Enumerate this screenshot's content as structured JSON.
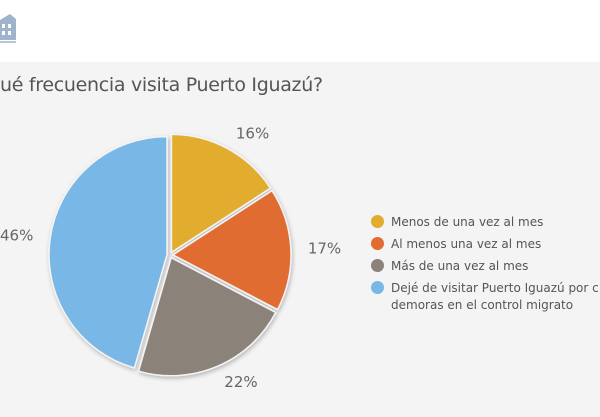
{
  "header": {
    "logo_icon": "building-logo-icon"
  },
  "chart_data": {
    "type": "pie",
    "title": "ué frecuencia visita Puerto Iguazú?",
    "categories": [
      "Menos de una vez al mes",
      "Al menos una vez al mes",
      "Más de una vez al mes",
      "Dejé de visitar Puerto Iguazú por c las demoras en el control migrato"
    ],
    "values": [
      16,
      17,
      22,
      46
    ],
    "labels": [
      "16%",
      "17%",
      "22%",
      "46%"
    ],
    "colors": [
      "#e2ad2f",
      "#e06c31",
      "#8b8279",
      "#79b8e6"
    ],
    "legend_position": "right"
  },
  "legend": {
    "items": [
      {
        "label": "Menos de una vez al mes",
        "color": "#e2ad2f"
      },
      {
        "label": "Al menos una vez al mes",
        "color": "#e06c31"
      },
      {
        "label": "Más de una vez al mes",
        "color": "#8b8279"
      },
      {
        "label": "Dejé de visitar Puerto Iguazú por c las demoras en el control migrato",
        "color": "#79b8e6"
      }
    ]
  }
}
